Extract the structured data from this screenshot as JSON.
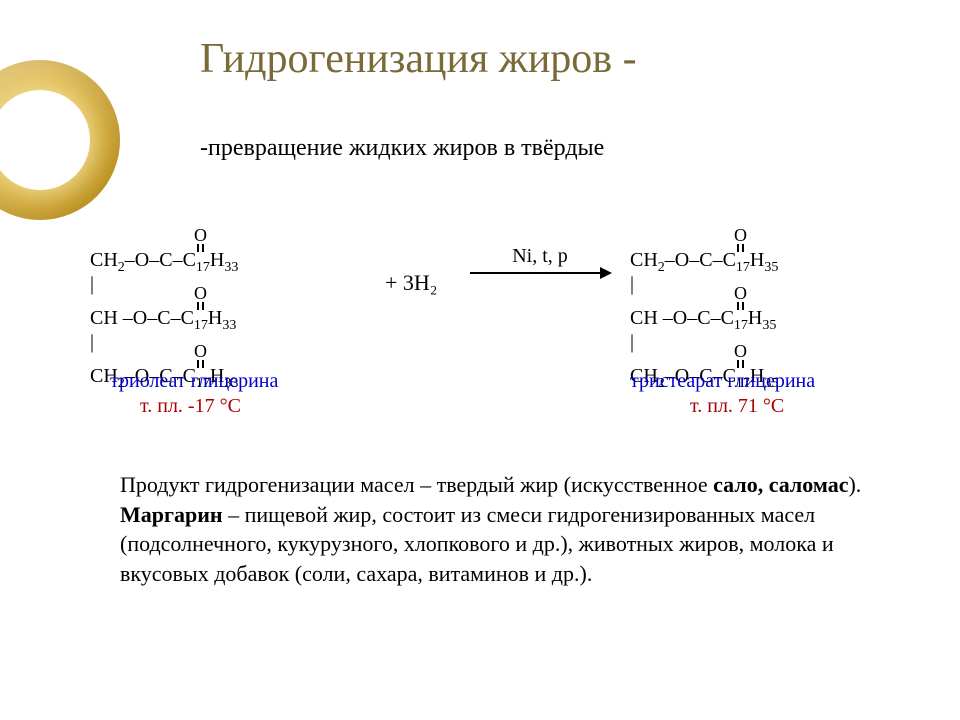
{
  "title": "Гидрогенизация жиров -",
  "subtitle": "-превращение жидких жиров в твёрдые",
  "reaction": {
    "left_molecule_lines": [
      "          O",
      "          ‖",
      "CH₂–O–C–C₁₇H₃₃",
      "|         O",
      "          ‖",
      "CH –O–C–C₁₇H₃₃",
      "|         O",
      "          ‖",
      "CH₂–O–C–C₁₇H₃₃"
    ],
    "right_molecule_lines": [
      "          O",
      "          ‖",
      "CH₂–O–C–C₁₇H₃₅",
      "|         O",
      "          ‖",
      "CH –O–C–C₁₇H₃₅",
      "|         O",
      "          ‖",
      "CH₂–O–C–C₁₇H₃₅"
    ],
    "plus_reagent": "+   3H₂",
    "conditions": "Ni, t, p",
    "left_name": "триолеат глицерина",
    "left_mp": "т. пл. -17 °C",
    "right_name": "тристеарат глицерина",
    "right_mp": "т. пл. 71 °C"
  },
  "body_text_html": "Продукт гидрогенизации масел – твердый жир (искусственное <b>сало, саломас</b>). <b>Маргарин</b> – пищевой жир, состоит из смеси гидрогенизированных масел (подсолнечного, кукурузного, хлопкового и др.), животных жиров, молока и вкусовых добавок (соли, сахара, витаминов и др.).",
  "colors": {
    "title_color": "#7a6a3a",
    "blue": "#0000cc",
    "red": "#aa0000",
    "ring_outer": "#d4a017",
    "ring_inner": "#ffffff",
    "background": "#ffffff"
  },
  "fontsizes": {
    "title": 42,
    "subtitle": 24,
    "labels": 20,
    "body": 22,
    "formula": 20
  }
}
